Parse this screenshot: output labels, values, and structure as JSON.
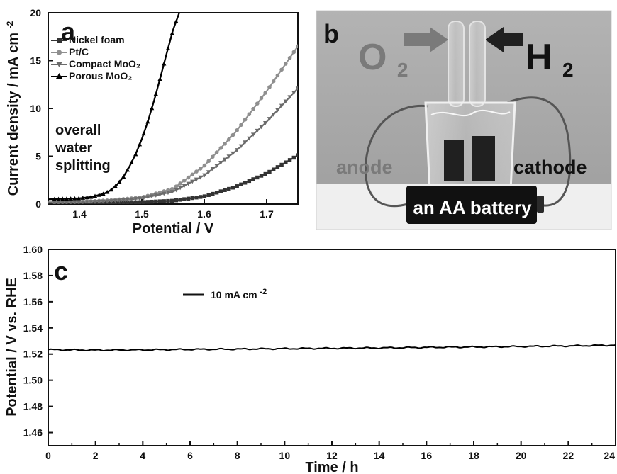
{
  "figure": {
    "colors": {
      "axis": "#111111",
      "nickel_foam": "#333333",
      "pt_c": "#8f8f8f",
      "compact_moo2": "#6b6b6b",
      "porous_moo2": "#000000",
      "photo_wall": "#a5a5a5",
      "photo_table": "#efefef",
      "label_gray": "#7a7a7a",
      "label_dark": "#202020",
      "battery": "#111111"
    },
    "panel_a": {
      "letter": "a",
      "note_lines": [
        "overall",
        "water",
        "splitting"
      ]
    },
    "panel_b": {
      "letter": "b",
      "o2_label": "O",
      "o2_subscript": "2",
      "h2_label": "H",
      "h2_subscript": "2",
      "anode_label": "anode",
      "cathode_label": "cathode",
      "battery_label": "an AA battery"
    },
    "panel_c": {
      "letter": "c"
    }
  },
  "chart_data": [
    {
      "id": "a",
      "type": "line",
      "xlabel": "Potential / V",
      "ylabel": "Current density / mA cm",
      "ylabel_superscript": "-2",
      "xlim": [
        1.35,
        1.75
      ],
      "ylim": [
        0,
        20
      ],
      "xticks": [
        1.4,
        1.5,
        1.6,
        1.7
      ],
      "xtick_labels": [
        "1.4",
        "1.5",
        "1.6",
        "1.7"
      ],
      "yticks": [
        0,
        5,
        10,
        15,
        20
      ],
      "ytick_labels": [
        "0",
        "5",
        "10",
        "15",
        "20"
      ],
      "grid": false,
      "legend": "top-left",
      "series": [
        {
          "name": "Nickel foam",
          "marker": "square",
          "color_key": "nickel_foam",
          "x": [
            1.35,
            1.4,
            1.45,
            1.5,
            1.55,
            1.6,
            1.65,
            1.7,
            1.75
          ],
          "y": [
            0.1,
            0.12,
            0.15,
            0.2,
            0.35,
            0.8,
            1.8,
            3.2,
            5.1
          ]
        },
        {
          "name": "Pt/C",
          "marker": "circle",
          "color_key": "pt_c",
          "x": [
            1.35,
            1.4,
            1.45,
            1.5,
            1.55,
            1.6,
            1.65,
            1.7,
            1.75
          ],
          "y": [
            0.2,
            0.25,
            0.4,
            0.7,
            1.6,
            4.0,
            7.5,
            11.8,
            16.5
          ]
        },
        {
          "name": "Compact MoO₂",
          "marker": "triangle-down",
          "color_key": "compact_moo2",
          "x": [
            1.35,
            1.4,
            1.45,
            1.5,
            1.55,
            1.6,
            1.65,
            1.7,
            1.75
          ],
          "y": [
            0.15,
            0.2,
            0.3,
            0.6,
            1.3,
            3.0,
            5.5,
            8.6,
            12.1
          ]
        },
        {
          "name": "Porous MoO₂",
          "marker": "triangle-up",
          "color_key": "porous_moo2",
          "x": [
            1.35,
            1.4,
            1.42,
            1.44,
            1.45,
            1.46,
            1.47,
            1.48,
            1.49,
            1.5,
            1.51,
            1.52,
            1.53,
            1.54,
            1.55,
            1.56
          ],
          "y": [
            0.5,
            0.6,
            0.75,
            1.1,
            1.45,
            2.0,
            2.8,
            3.9,
            5.2,
            6.8,
            8.7,
            10.9,
            13.3,
            15.8,
            18.2,
            20.0
          ]
        }
      ]
    },
    {
      "id": "c",
      "type": "line",
      "xlabel": "Time / h",
      "ylabel": "Potential / V vs. RHE",
      "xlim": [
        0,
        24
      ],
      "ylim": [
        1.45,
        1.6
      ],
      "xticks": [
        0,
        2,
        4,
        6,
        8,
        10,
        12,
        14,
        16,
        18,
        20,
        22,
        24
      ],
      "xtick_labels": [
        "0",
        "2",
        "4",
        "6",
        "8",
        "10",
        "12",
        "14",
        "16",
        "18",
        "20",
        "22",
        "24"
      ],
      "yticks": [
        1.46,
        1.48,
        1.5,
        1.52,
        1.54,
        1.56,
        1.58,
        1.6
      ],
      "ytick_labels": [
        "1.46",
        "1.48",
        "1.50",
        "1.52",
        "1.54",
        "1.56",
        "1.58",
        "1.60"
      ],
      "grid": false,
      "legend": "top-left",
      "series": [
        {
          "name": "10 mA cm",
          "name_superscript": "-2",
          "color_key": "porous_moo2",
          "x": [
            0,
            1,
            2,
            3,
            4,
            5,
            6,
            7,
            8,
            9,
            10,
            11,
            12,
            13,
            14,
            15,
            16,
            17,
            18,
            19,
            20,
            21,
            22,
            23,
            24
          ],
          "y": [
            1.5234,
            1.5232,
            1.523,
            1.5231,
            1.5232,
            1.5234,
            1.5236,
            1.5237,
            1.5238,
            1.524,
            1.5241,
            1.5243,
            1.5244,
            1.5246,
            1.5247,
            1.5249,
            1.5251,
            1.5253,
            1.5254,
            1.5256,
            1.5258,
            1.526,
            1.5262,
            1.5265,
            1.5268
          ]
        }
      ]
    }
  ]
}
